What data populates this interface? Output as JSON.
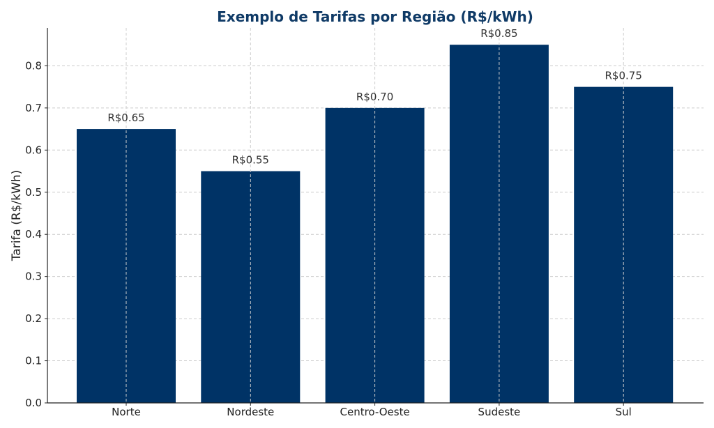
{
  "chart_data": {
    "type": "bar",
    "title": "Exemplo de Tarifas por Região (R$/kWh)",
    "xlabel": "",
    "ylabel": "Tarifa (R$/kWh)",
    "categories": [
      "Norte",
      "Nordeste",
      "Centro-Oeste",
      "Sudeste",
      "Sul"
    ],
    "values": [
      0.65,
      0.55,
      0.7,
      0.85,
      0.75
    ],
    "data_labels": [
      "R$0.65",
      "R$0.55",
      "R$0.70",
      "R$0.85",
      "R$0.75"
    ],
    "ylim": [
      0,
      0.89
    ],
    "yticks": [
      0.0,
      0.1,
      0.2,
      0.3,
      0.4,
      0.5,
      0.6,
      0.7,
      0.8
    ],
    "ytick_labels": [
      "0.0",
      "0.1",
      "0.2",
      "0.3",
      "0.4",
      "0.5",
      "0.6",
      "0.7",
      "0.8"
    ],
    "grid": true,
    "colors": {
      "bar": "#003366",
      "title": "#0f3a66"
    }
  }
}
